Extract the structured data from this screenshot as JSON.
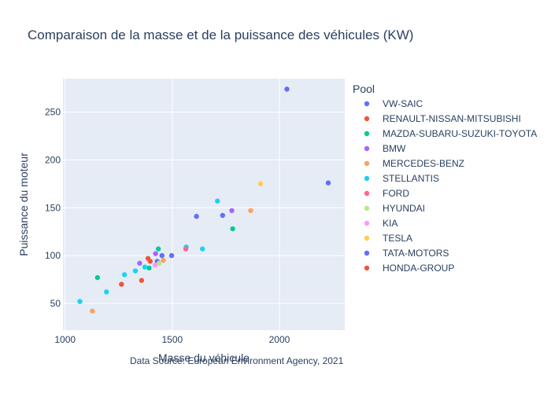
{
  "chart_data": {
    "type": "scatter",
    "title": "Comparaison de la masse et de la puissance des véhicules (KW)",
    "xlabel": "Masse du véhicule",
    "ylabel": "Puissance du moteur",
    "xlim": [
      990,
      2305
    ],
    "ylim": [
      22,
      285
    ],
    "x_ticks": [
      1000,
      1500,
      2000
    ],
    "y_ticks": [
      50,
      100,
      150,
      200,
      250
    ],
    "grid": true,
    "legend": {
      "title": "Pool",
      "placement": "right"
    },
    "annotation": "Data Source: European Environment Agency, 2021",
    "series": [
      {
        "name": "VW-SAIC",
        "color": "#636efa",
        "points": [
          [
            2035,
            274
          ],
          [
            2228,
            176
          ],
          [
            1613,
            141
          ],
          [
            1735,
            142
          ],
          [
            1497,
            100
          ],
          [
            1452,
            100
          ],
          [
            1430,
            94
          ]
        ]
      },
      {
        "name": "RENAULT-NISSAN-MITSUBISHI",
        "color": "#ef553b",
        "points": [
          [
            1263,
            70
          ],
          [
            1387,
            97
          ],
          [
            1397,
            94
          ],
          [
            1357,
            74
          ]
        ]
      },
      {
        "name": "MAZDA-SUBARU-SUZUKI-TOYOTA",
        "color": "#00cc96",
        "points": [
          [
            1151,
            77
          ],
          [
            1782,
            128
          ],
          [
            1435,
            107
          ],
          [
            1392,
            87
          ]
        ]
      },
      {
        "name": "BMW",
        "color": "#ab63fa",
        "points": [
          [
            1778,
            147
          ],
          [
            1348,
            92
          ],
          [
            1422,
            102
          ]
        ]
      },
      {
        "name": "MERCEDES-BENZ",
        "color": "#ffa15a",
        "points": [
          [
            1127,
            42
          ],
          [
            1866,
            147
          ],
          [
            1458,
            95
          ]
        ]
      },
      {
        "name": "STELLANTIS",
        "color": "#19d3f3",
        "points": [
          [
            1069,
            52
          ],
          [
            1193,
            62
          ],
          [
            1277,
            80
          ],
          [
            1328,
            84
          ],
          [
            1372,
            88
          ],
          [
            1565,
            109
          ],
          [
            1641,
            107
          ],
          [
            1711,
            157
          ]
        ]
      },
      {
        "name": "FORD",
        "color": "#ff6692",
        "points": [
          [
            1563,
            107
          ]
        ]
      },
      {
        "name": "HYUNDAI",
        "color": "#b6e880",
        "points": [
          [
            1438,
            92
          ]
        ]
      },
      {
        "name": "KIA",
        "color": "#ff97ff",
        "points": [
          [
            1420,
            90
          ]
        ]
      },
      {
        "name": "TESLA",
        "color": "#fecb52",
        "points": [
          [
            1912,
            175
          ]
        ]
      },
      {
        "name": "TATA-MOTORS",
        "color": "#636efa",
        "points": []
      },
      {
        "name": "HONDA-GROUP",
        "color": "#ef553b",
        "points": []
      }
    ]
  }
}
